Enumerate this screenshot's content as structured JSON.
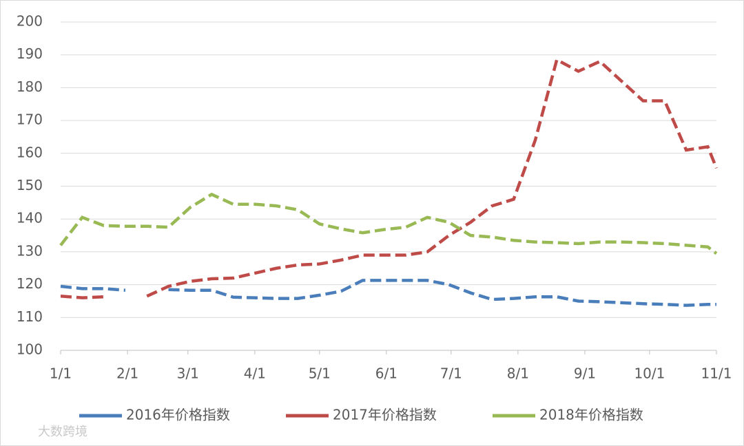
{
  "chart_data": {
    "type": "line",
    "x": [
      0,
      10,
      20,
      30,
      40,
      50,
      60,
      70,
      80,
      90,
      100,
      110,
      120,
      130,
      140,
      150,
      160,
      170,
      180,
      190,
      200,
      210,
      220,
      230,
      240,
      250,
      260,
      270,
      280,
      290,
      300,
      304
    ],
    "xlim": [
      0,
      304
    ],
    "xticks": [
      {
        "value": 0,
        "label": "1/1"
      },
      {
        "value": 31,
        "label": "2/1"
      },
      {
        "value": 59,
        "label": "3/1"
      },
      {
        "value": 90,
        "label": "4/1"
      },
      {
        "value": 120,
        "label": "5/1"
      },
      {
        "value": 151,
        "label": "6/1"
      },
      {
        "value": 181,
        "label": "7/1"
      },
      {
        "value": 212,
        "label": "8/1"
      },
      {
        "value": 243,
        "label": "9/1"
      },
      {
        "value": 273,
        "label": "10/1"
      },
      {
        "value": 304,
        "label": "11/1"
      }
    ],
    "ylim": [
      100,
      200
    ],
    "yticks": [
      100,
      110,
      120,
      130,
      140,
      150,
      160,
      170,
      180,
      190,
      200
    ],
    "grid": true,
    "legend": "bottom",
    "series": [
      {
        "name": "2016年价格指数",
        "color": "#4a7ebb",
        "values": [
          119.5,
          118.8,
          118.8,
          118.3,
          null,
          118.5,
          118.3,
          118.3,
          116.2,
          116,
          115.8,
          115.8,
          116.8,
          118,
          121.3,
          121.3,
          121.3,
          121.3,
          120,
          117.5,
          115.5,
          115.8,
          116.3,
          116.3,
          115,
          114.8,
          114.5,
          114.2,
          114,
          113.7,
          114,
          114
        ]
      },
      {
        "name": "2017年价格指数",
        "color": "#be4b48",
        "values": [
          116.5,
          116,
          116.3,
          null,
          116.5,
          119.5,
          121,
          121.8,
          122,
          123.5,
          125,
          126,
          126.3,
          127.5,
          129,
          129,
          129,
          130,
          135,
          139,
          144,
          146,
          164,
          188.5,
          185,
          188,
          182,
          176,
          176,
          161,
          162,
          155.5
        ]
      },
      {
        "name": "2018年价格指数",
        "color": "#98b954",
        "values": [
          132,
          140.5,
          138,
          137.8,
          137.8,
          137.5,
          143.5,
          147.5,
          144.5,
          144.5,
          144,
          142.8,
          138.5,
          137,
          135.8,
          136.8,
          137.5,
          140.5,
          139,
          135,
          134.5,
          133.5,
          133,
          132.8,
          132.5,
          133,
          133,
          132.8,
          132.5,
          132,
          131.5,
          129.5
        ]
      }
    ],
    "watermark": "大数跨境"
  }
}
